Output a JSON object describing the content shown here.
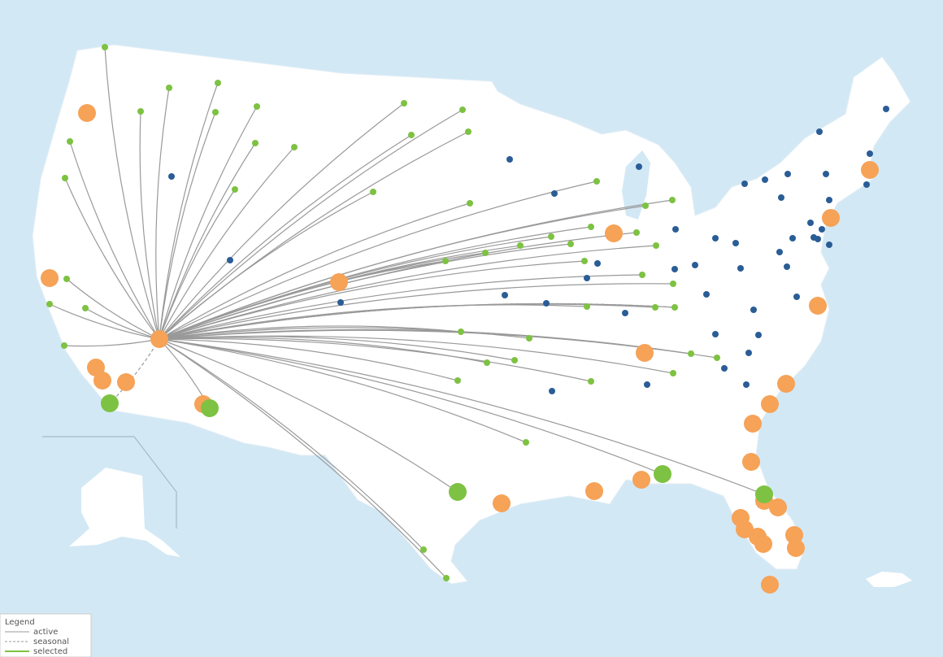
{
  "legend": {
    "title": "Legend",
    "items": [
      "active",
      "seasonal",
      "selected"
    ]
  }
}
